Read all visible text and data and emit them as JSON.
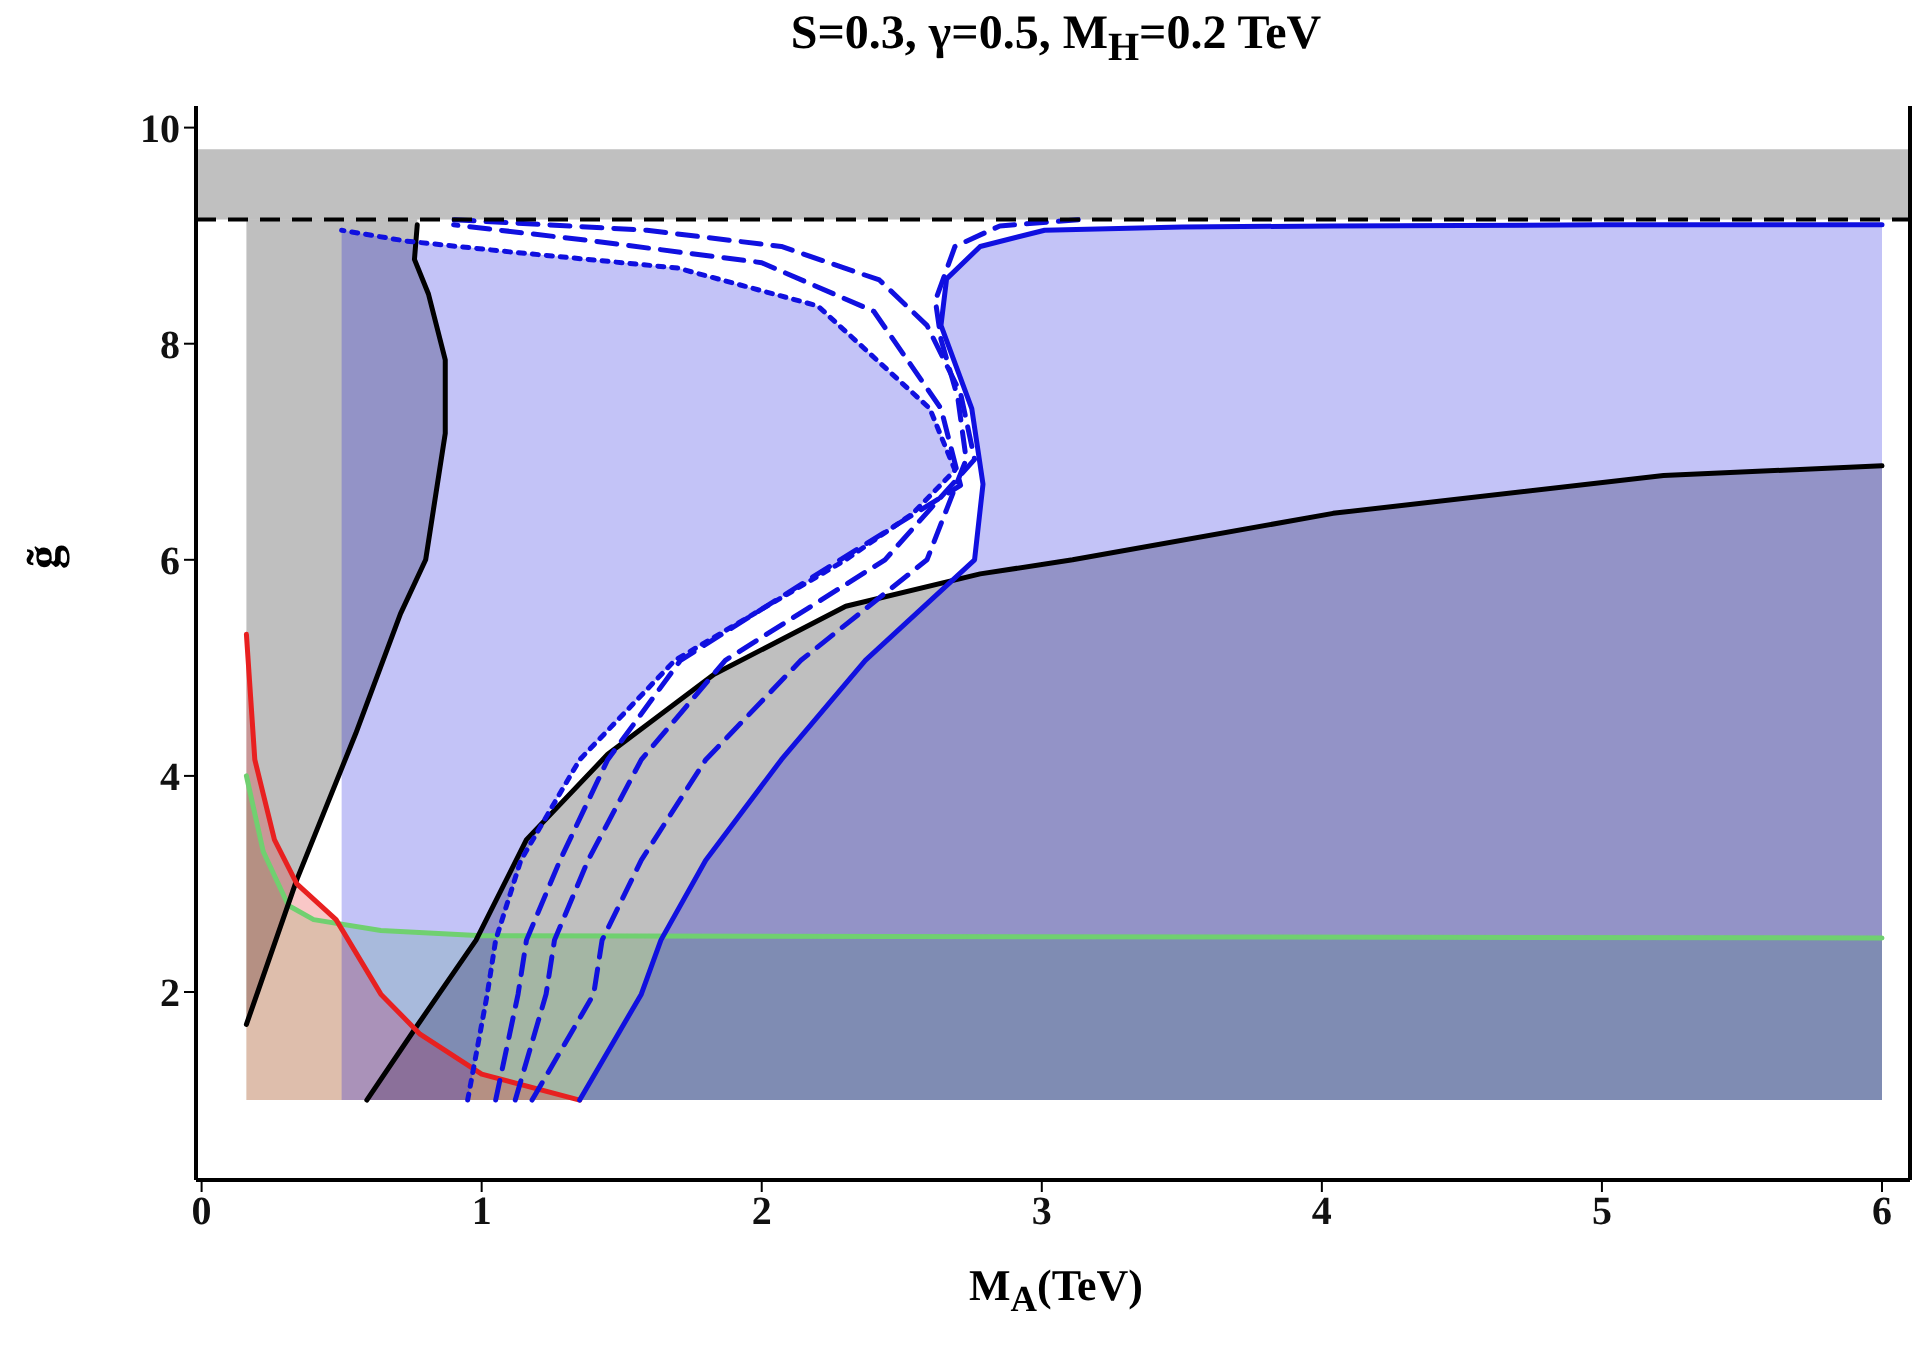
{
  "chart_data": {
    "type": "line",
    "title": "S=0.3, γ=0.5, M$_{H}$=0.2 TeV",
    "xlabel": "M$_{A}$(TeV)",
    "ylabel": "g̃",
    "xlim": [
      -0.02,
      6.1
    ],
    "ylim": [
      0.26,
      10.2
    ],
    "xticks": [
      0,
      1,
      2,
      3,
      4,
      5,
      6
    ],
    "yticks": [
      2,
      4,
      6,
      8,
      10
    ],
    "bands": [
      {
        "axis": "y",
        "from": 9.15,
        "to": 9.8,
        "color": "#c0c0c0"
      }
    ],
    "ref_lines": [
      {
        "axis": "y",
        "value": 9.15,
        "color": "#000000",
        "line_style": "dashed"
      }
    ],
    "series": [
      {
        "color": "#70d070",
        "line_style": "solid",
        "x": [
          0.16,
          0.22,
          0.31,
          0.4,
          0.64,
          1.0,
          6.0
        ],
        "values": [
          4.0,
          3.3,
          2.8,
          2.67,
          2.57,
          2.52,
          2.5
        ],
        "lower": [
          1,
          1,
          1,
          1,
          1,
          1,
          1
        ],
        "upper": [
          4.0,
          3.3,
          2.8,
          2.67,
          2.57,
          2.52,
          2.5
        ]
      },
      {
        "color": "#000000",
        "line_style": "solid",
        "x": [
          0.16,
          0.34,
          0.55,
          0.71,
          0.8,
          0.87,
          0.87,
          0.81,
          0.76,
          0.77
        ],
        "values": [
          1.7,
          3.04,
          4.39,
          5.5,
          6.0,
          7.17,
          7.85,
          8.46,
          8.78,
          9.1
        ],
        "lower": [
          1.7,
          3.04,
          4.39,
          5.5,
          6.0,
          7.17,
          7.85,
          8.46,
          8.78,
          9.1
        ],
        "upper": [
          9.15,
          9.15,
          9.15,
          9.15,
          9.15,
          9.15,
          9.15,
          9.15,
          9.15,
          9.15
        ]
      },
      {
        "color": "#000000",
        "line_style": "solid",
        "x": [
          0.59,
          0.77,
          0.98,
          1.16,
          1.45,
          1.83,
          2.3,
          2.78,
          3.11,
          4.04,
          5.22,
          6.0
        ],
        "values": [
          1.0,
          1.69,
          2.48,
          3.41,
          4.2,
          4.94,
          5.57,
          5.87,
          6.0,
          6.43,
          6.78,
          6.87
        ],
        "lower": [
          1,
          1,
          1,
          1,
          1,
          1,
          1,
          1,
          1,
          1,
          1,
          1
        ],
        "upper": [
          1.0,
          1.69,
          2.48,
          3.41,
          4.2,
          4.94,
          5.57,
          5.87,
          6.0,
          6.43,
          6.78,
          6.87
        ]
      },
      {
        "color": "#e82020",
        "line_style": "solid",
        "x": [
          0.16,
          0.19,
          0.26,
          0.34,
          0.48,
          0.64,
          0.78,
          1.0,
          1.35
        ],
        "values": [
          5.31,
          4.15,
          3.41,
          3.0,
          2.67,
          1.98,
          1.61,
          1.24,
          1.0
        ],
        "lower": [
          1,
          1,
          1,
          1,
          1,
          1,
          1,
          1,
          1
        ],
        "upper": [
          5.31,
          4.15,
          3.41,
          3.0,
          2.67,
          1.98,
          1.61,
          1.24,
          1.0
        ]
      },
      {
        "color": "#1010e0",
        "line_style": "dotted",
        "x": [
          0.95,
          1.02,
          1.05,
          1.14,
          1.35,
          1.69,
          2.3,
          2.54,
          2.69,
          2.6,
          2.2,
          1.7,
          1.1,
          0.73,
          0.5
        ],
        "values": [
          1.0,
          1.98,
          2.48,
          3.22,
          4.15,
          5.07,
          6.0,
          6.43,
          6.83,
          7.4,
          8.35,
          8.7,
          8.85,
          8.95,
          9.05
        ],
        "lower": [
          1,
          1,
          1,
          1,
          1,
          1,
          1,
          1,
          1,
          1,
          1,
          1,
          1,
          1,
          1
        ],
        "upper": [
          1.0,
          1.98,
          2.48,
          3.22,
          4.15,
          5.07,
          6.0,
          6.43,
          6.83,
          7.4,
          8.35,
          8.7,
          8.85,
          8.95,
          9.05
        ]
      },
      {
        "color": "#1010e0",
        "line_style": "dashed",
        "x": [
          1.05,
          1.13,
          1.16,
          1.28,
          1.45,
          1.71,
          2.28,
          2.71,
          2.64,
          2.4,
          2.0,
          1.4,
          0.9
        ],
        "values": [
          1.0,
          1.98,
          2.48,
          3.22,
          4.15,
          5.07,
          6.0,
          6.69,
          7.4,
          8.3,
          8.75,
          8.95,
          9.1
        ]
      },
      {
        "color": "#1010e0",
        "line_style": "dashed",
        "x": [
          1.12,
          1.23,
          1.26,
          1.38,
          1.57,
          1.87,
          2.44,
          2.76,
          2.71,
          2.59,
          2.42,
          2.07,
          1.59,
          0.88
        ],
        "values": [
          1.0,
          1.98,
          2.48,
          3.22,
          4.15,
          5.07,
          6.0,
          6.93,
          7.54,
          8.17,
          8.59,
          8.9,
          9.05,
          9.15
        ]
      },
      {
        "color": "#1010e0",
        "line_style": "dashed",
        "x": [
          1.18,
          1.4,
          1.43,
          1.57,
          1.8,
          2.14,
          2.59,
          2.73,
          2.7,
          2.64,
          2.62,
          2.69,
          2.85,
          3.14
        ],
        "values": [
          1.0,
          1.98,
          2.48,
          3.22,
          4.15,
          5.07,
          6.0,
          6.93,
          7.5,
          8.04,
          8.4,
          8.9,
          9.09,
          9.15
        ]
      },
      {
        "color": "#1010e0",
        "line_style": "solid",
        "x": [
          1.35,
          1.57,
          1.64,
          1.8,
          2.07,
          2.37,
          2.76,
          2.79,
          2.75,
          2.64,
          2.66,
          2.78,
          3.01,
          3.5,
          4.04,
          5.0,
          6.0
        ],
        "values": [
          1.0,
          1.98,
          2.48,
          3.22,
          4.15,
          5.07,
          6.0,
          6.7,
          7.4,
          8.17,
          8.6,
          8.9,
          9.05,
          9.08,
          9.09,
          9.1,
          9.1
        ],
        "lower": [
          1,
          1,
          1,
          1,
          1,
          1,
          1,
          1,
          1,
          1,
          1,
          1,
          1,
          1,
          1,
          1,
          1
        ],
        "upper": [
          1.0,
          1.98,
          2.48,
          3.22,
          4.15,
          5.07,
          6.0,
          6.7,
          7.4,
          8.17,
          8.6,
          8.9,
          9.05,
          9.08,
          9.09,
          9.1,
          9.1
        ]
      }
    ]
  }
}
